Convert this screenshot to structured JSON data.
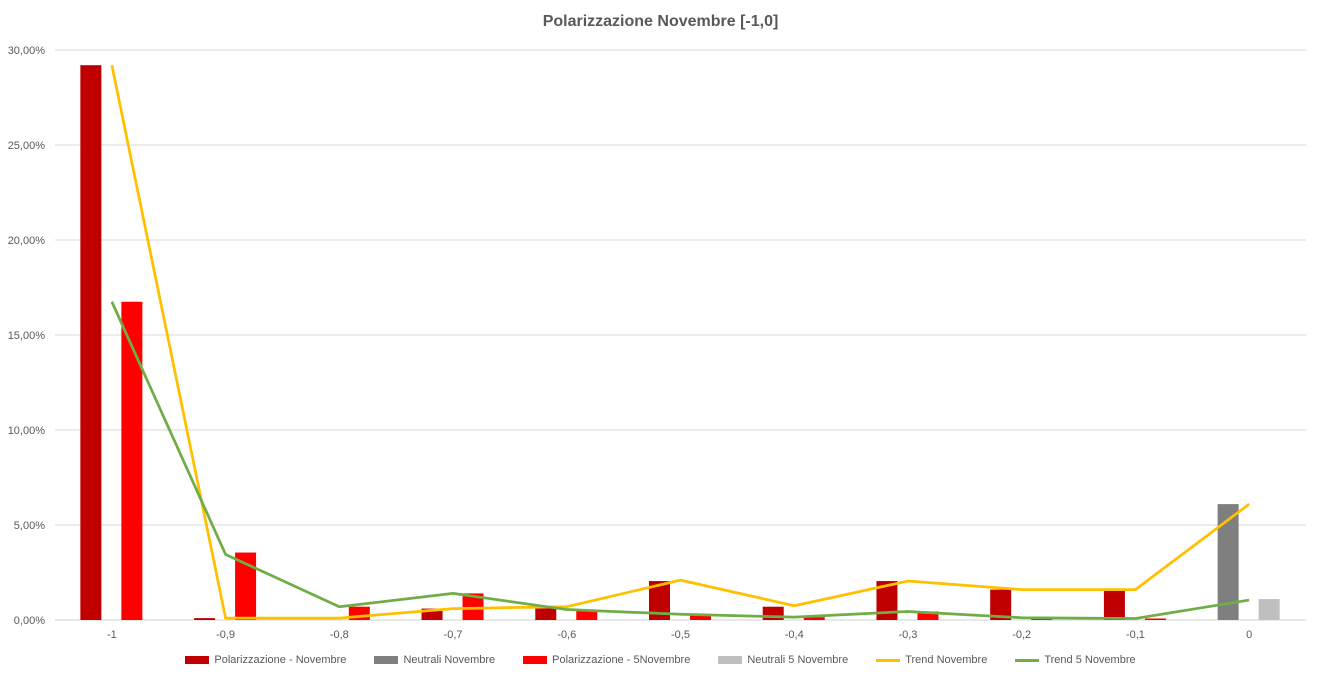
{
  "chart_data": {
    "type": "bar",
    "title": "Polarizzazione Novembre [-1,0]",
    "categories": [
      "-1",
      "-0,9",
      "-0,8",
      "-0,7",
      "-0,6",
      "-0,5",
      "-0,4",
      "-0,3",
      "-0,2",
      "-0,1",
      "0"
    ],
    "ylim": [
      0,
      30
    ],
    "yticks": [
      "0,00%",
      "5,00%",
      "10,00%",
      "15,00%",
      "20,00%",
      "25,00%",
      "30,00%"
    ],
    "ytick_values": [
      0,
      5,
      10,
      15,
      20,
      25,
      30
    ],
    "grid": true,
    "legend_position": "bottom",
    "bar_series": [
      {
        "name": "Polarizzazione - Novembre",
        "color": "#c00000",
        "slot": 0,
        "values": [
          29.2,
          0.1,
          0,
          0.6,
          0.7,
          2.05,
          0.7,
          2.05,
          1.6,
          1.55,
          0
        ]
      },
      {
        "name": "Neutrali Novembre",
        "color": "#7f7f7f",
        "slot": 0,
        "values": [
          0,
          0,
          0,
          0,
          0,
          0,
          0,
          0,
          0,
          0,
          6.1
        ]
      },
      {
        "name": "Polarizzazione - 5Novembre",
        "color": "#ff0000",
        "slot": 1,
        "values": [
          16.75,
          3.55,
          0.7,
          1.4,
          0.5,
          0.25,
          0.15,
          0.45,
          0.15,
          0.08,
          0
        ]
      },
      {
        "name": "Neutrali 5 Novembre",
        "color": "#bfbfbf",
        "slot": 1,
        "values": [
          0,
          0,
          0,
          0,
          0,
          0,
          0,
          0,
          0,
          0,
          1.1
        ]
      }
    ],
    "line_series": [
      {
        "name": "Trend Novembre",
        "color": "#ffc000",
        "values": [
          29.2,
          0.1,
          0.1,
          0.6,
          0.7,
          2.1,
          0.75,
          2.05,
          1.6,
          1.6,
          6.1
        ]
      },
      {
        "name": "Trend 5 Novembre",
        "color": "#70ad47",
        "values": [
          16.75,
          3.45,
          0.7,
          1.4,
          0.55,
          0.3,
          0.15,
          0.45,
          0.12,
          0.08,
          1.05
        ]
      }
    ]
  }
}
